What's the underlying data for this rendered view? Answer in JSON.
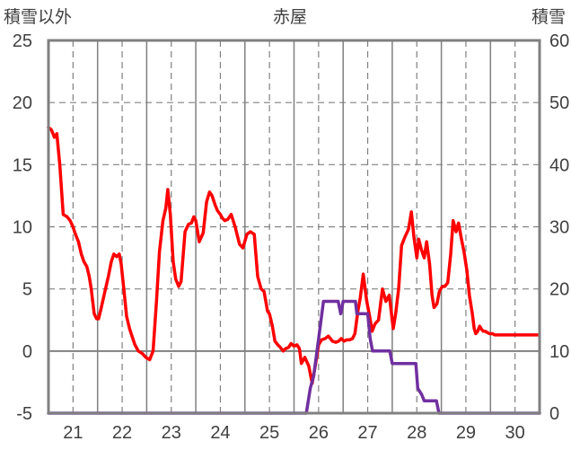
{
  "chart_data": {
    "type": "line",
    "title": "赤屋",
    "y_left_label": "積雪以外",
    "y_right_label": "積雪",
    "y_left_ticks": [
      "25",
      "20",
      "15",
      "10",
      "5",
      "0",
      "-5"
    ],
    "y_right_ticks": [
      "60",
      "50",
      "40",
      "30",
      "20",
      "10",
      "0"
    ],
    "x_ticks": [
      "21",
      "22",
      "23",
      "24",
      "25",
      "26",
      "27",
      "28",
      "29",
      "30"
    ],
    "x_tick_positions": [
      21,
      22,
      23,
      24,
      25,
      26,
      27,
      28,
      29,
      30
    ],
    "xlim": [
      20.5,
      30.5
    ],
    "y_left_lim": [
      -5,
      25
    ],
    "y_right_lim": [
      0,
      60
    ],
    "grid": true,
    "colors": {
      "temperature": "#ff0000",
      "snow": "#7030a0"
    },
    "series": [
      {
        "axis": "left",
        "color": "#ff0000",
        "x": [
          20.5,
          20.56,
          20.62,
          20.67,
          20.73,
          20.8,
          20.88,
          20.94,
          21.0,
          21.04,
          21.11,
          21.17,
          21.22,
          21.28,
          21.33,
          21.37,
          21.43,
          21.48,
          21.52,
          21.57,
          21.65,
          21.72,
          21.78,
          21.83,
          21.89,
          21.94,
          21.98,
          22.04,
          22.09,
          22.15,
          22.2,
          22.26,
          22.33,
          22.41,
          22.48,
          22.56,
          22.63,
          22.7,
          22.76,
          22.83,
          22.89,
          22.93,
          22.98,
          23.04,
          23.09,
          23.15,
          23.2,
          23.28,
          23.35,
          23.41,
          23.46,
          23.5,
          23.57,
          23.65,
          23.72,
          23.78,
          23.83,
          23.89,
          23.94,
          24.0,
          24.04,
          24.09,
          24.15,
          24.22,
          24.3,
          24.39,
          24.46,
          24.54,
          24.61,
          24.69,
          24.76,
          24.83,
          24.89,
          24.96,
          25.0,
          25.06,
          25.11,
          25.17,
          25.22,
          25.28,
          25.33,
          25.39,
          25.44,
          25.5,
          25.56,
          25.61,
          25.65,
          25.72,
          25.8,
          25.87,
          25.94,
          26.0,
          26.06,
          26.13,
          26.2,
          26.28,
          26.35,
          26.41,
          26.46,
          26.52,
          26.57,
          26.63,
          26.69,
          26.74,
          26.8,
          26.85,
          26.91,
          26.98,
          27.04,
          27.09,
          27.15,
          27.22,
          27.3,
          27.37,
          27.44,
          27.52,
          27.57,
          27.63,
          27.69,
          27.76,
          27.83,
          27.89,
          27.94,
          28.0,
          28.04,
          28.09,
          28.15,
          28.2,
          28.26,
          28.31,
          28.35,
          28.41,
          28.46,
          28.52,
          28.57,
          28.63,
          28.69,
          28.74,
          28.8,
          28.85,
          28.91,
          28.96,
          29.02,
          29.07,
          29.13,
          29.17,
          29.2,
          29.24,
          29.28,
          29.31,
          29.35,
          29.39,
          29.43,
          29.48,
          29.54,
          29.59,
          29.65,
          29.7,
          29.76,
          29.81,
          29.87,
          29.93,
          29.98,
          30.04,
          30.07,
          30.11,
          30.15,
          30.2,
          30.26,
          30.31,
          30.37,
          30.43,
          30.48
        ],
        "values": [
          18.0,
          17.8,
          17.2,
          17.5,
          15.0,
          11.0,
          10.8,
          10.5,
          10.0,
          9.5,
          8.8,
          7.8,
          7.2,
          6.8,
          6.0,
          5.0,
          3.0,
          2.6,
          2.6,
          3.4,
          4.8,
          6.0,
          7.2,
          7.8,
          7.6,
          7.8,
          7.0,
          4.8,
          2.8,
          1.8,
          1.2,
          0.5,
          0.0,
          -0.2,
          -0.5,
          -0.7,
          0.0,
          4.0,
          8.0,
          10.5,
          11.5,
          13.0,
          11.0,
          7.2,
          5.8,
          5.2,
          5.6,
          9.6,
          10.2,
          10.3,
          10.8,
          10.5,
          8.8,
          9.5,
          12.0,
          12.8,
          12.5,
          11.8,
          11.3,
          11.0,
          10.7,
          10.5,
          10.6,
          11.0,
          10.0,
          8.6,
          8.3,
          9.4,
          9.6,
          9.4,
          6.0,
          5.0,
          4.8,
          3.2,
          3.0,
          2.0,
          0.8,
          0.5,
          0.3,
          0.0,
          0.2,
          0.3,
          0.6,
          0.4,
          0.5,
          0.2,
          -1.0,
          -0.5,
          -1.2,
          -2.6,
          -1.0,
          0.5,
          0.9,
          1.0,
          1.2,
          0.8,
          0.7,
          0.8,
          1.0,
          0.8,
          0.9,
          0.9,
          1.0,
          1.4,
          3.2,
          4.3,
          6.2,
          4.0,
          2.8,
          1.6,
          2.2,
          2.5,
          5.0,
          4.0,
          4.5,
          1.8,
          3.0,
          5.0,
          8.5,
          9.2,
          9.8,
          11.2,
          9.2,
          7.5,
          9.0,
          8.2,
          7.5,
          8.8,
          7.0,
          4.5,
          3.5,
          3.8,
          4.8,
          5.2,
          5.2,
          5.5,
          7.8,
          10.5,
          9.6,
          10.3,
          9.0,
          8.0,
          6.5,
          4.5,
          3.0,
          1.8,
          1.4,
          1.6,
          2.0,
          1.8,
          1.6,
          1.6,
          1.5,
          1.4,
          1.4,
          1.3,
          1.3,
          1.3,
          1.3,
          1.3,
          1.3,
          1.3,
          1.3,
          1.3,
          1.3,
          1.3,
          1.3,
          1.3,
          1.3,
          1.3,
          1.3,
          1.3,
          1.3
        ]
      },
      {
        "axis": "right",
        "color": "#7030a0",
        "x": [
          20.5,
          25.65,
          25.75,
          25.83,
          25.9,
          26.0,
          26.1,
          26.4,
          26.45,
          26.5,
          26.75,
          26.78,
          27.0,
          27.05,
          27.1,
          27.45,
          27.5,
          27.98,
          28.02,
          28.1,
          28.15,
          28.4,
          28.45,
          30.5
        ],
        "values": [
          0,
          0,
          0,
          4,
          6,
          12,
          18,
          18,
          16,
          18,
          18,
          16,
          16,
          12,
          10,
          10,
          8,
          8,
          4,
          3,
          2,
          2,
          0,
          0
        ]
      }
    ]
  }
}
